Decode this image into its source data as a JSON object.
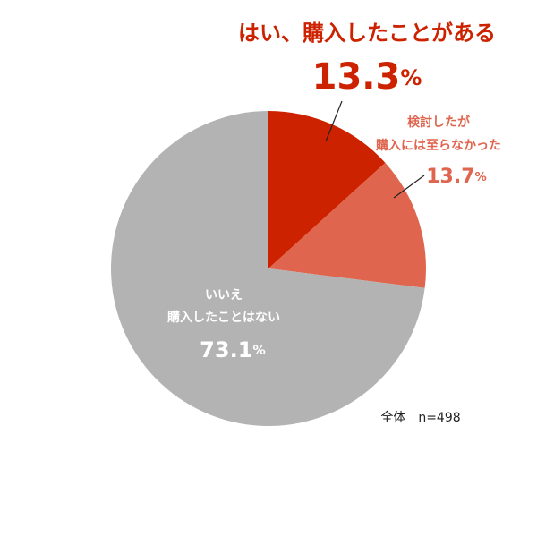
{
  "chart_data": {
    "type": "pie",
    "categories": [
      [
        "はい、購入したことがある"
      ],
      [
        "検討したが",
        "購入には至らなかった"
      ],
      [
        "いいえ",
        "購入したことはない"
      ]
    ],
    "values": [
      13.3,
      13.7,
      73.1
    ],
    "value_labels": [
      "13.3%",
      "13.7%",
      "73.1%"
    ],
    "colors": [
      "#cc2200",
      "#e0654f",
      "#b3b3b3"
    ],
    "note": "全体　n=498"
  }
}
